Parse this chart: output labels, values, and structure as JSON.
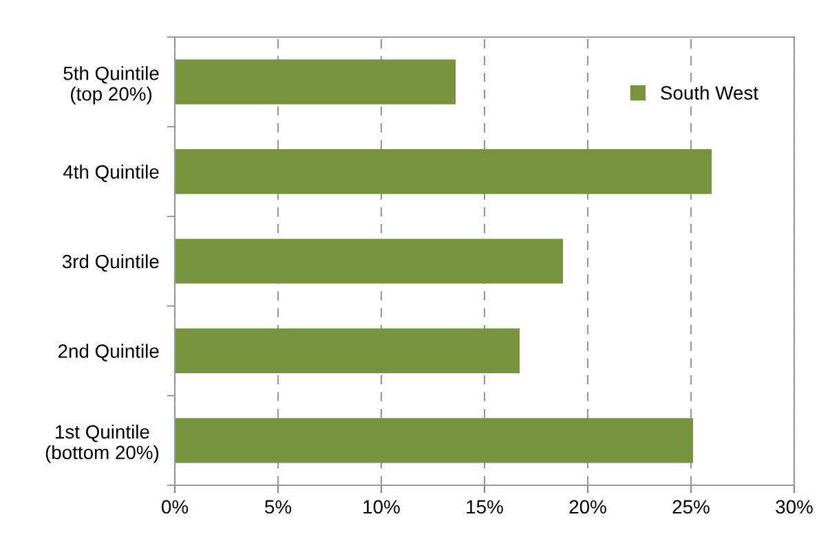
{
  "chart_data": {
    "type": "bar",
    "orientation": "horizontal",
    "categories": [
      "5th Quintile\n(top 20%)",
      "4th Quintile",
      "3rd Quintile",
      "2nd Quintile",
      "1st Quintile\n(bottom 20%)"
    ],
    "series": [
      {
        "name": "South West",
        "color": "#77933c",
        "values": [
          13.6,
          26.0,
          18.8,
          16.7,
          25.1
        ]
      }
    ],
    "xlim": [
      0,
      30
    ],
    "xticks": [
      {
        "value": 0,
        "label": "0%"
      },
      {
        "value": 5,
        "label": "5%"
      },
      {
        "value": 10,
        "label": "10%"
      },
      {
        "value": 15,
        "label": "15%"
      },
      {
        "value": 20,
        "label": "20%"
      },
      {
        "value": 25,
        "label": "25%"
      },
      {
        "value": 30,
        "label": "30%"
      }
    ],
    "grid": "x",
    "legend": "top right"
  }
}
